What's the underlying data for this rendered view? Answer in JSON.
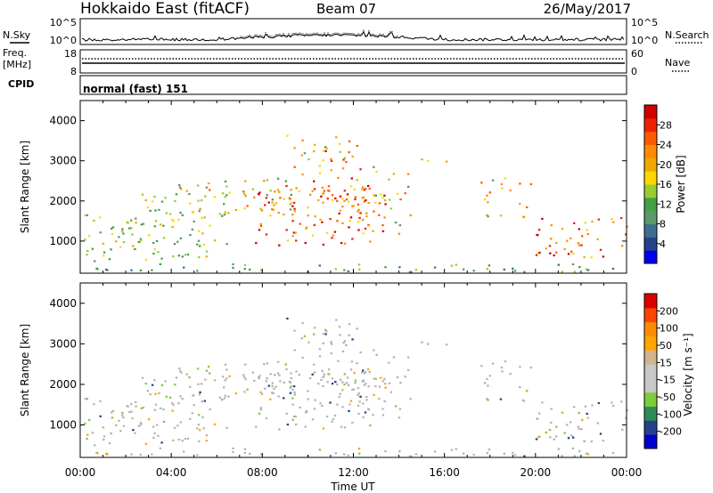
{
  "header": {
    "station": "Hokkaido East (fitACF)",
    "beam": "Beam 07",
    "date": "26/May/2017"
  },
  "strips": {
    "nsky_label": "N.Sky",
    "nsearch_label": "N.Search",
    "nsky_ticks": [
      "10^5",
      "10^0"
    ],
    "freq_label": "Freq.",
    "freq_unit": "[MHz]",
    "freq_ticks": [
      "18",
      "8"
    ],
    "nave_label": "Nave",
    "nave_ticks": [
      "60",
      "0"
    ],
    "cpid_label": "CPID",
    "cpid_value": "normal (fast) 151"
  },
  "colors": {
    "power": [
      "#0000ee",
      "#27408b",
      "#3c6e8e",
      "#5a9a6a",
      "#43a043",
      "#9acd32",
      "#ffd700",
      "#f0a800",
      "#ff8c00",
      "#ff5a00",
      "#ee2200",
      "#d00000"
    ],
    "velocity": [
      "#dd0000",
      "#ff4500",
      "#ff8c00",
      "#ffa500",
      "#d2b48c",
      "#c8c8c8",
      "#c8c8c8",
      "#7ccd3c",
      "#2e8b57",
      "#27408b",
      "#0000cd"
    ],
    "ground_scatter": "#b4b4b4"
  },
  "chart_data": [
    {
      "type": "heatmap",
      "name": "power",
      "ylabel": "Slant Range [km]",
      "ylim": [
        200,
        4500
      ],
      "yticks": [
        1000,
        2000,
        3000,
        4000
      ],
      "colorbar": {
        "label": "Power [dB]",
        "range": [
          0,
          32
        ],
        "ticks": [
          "4",
          "8",
          "12",
          "16",
          "20",
          "24",
          "28"
        ]
      }
    },
    {
      "type": "heatmap",
      "name": "velocity",
      "ylabel": "Slant Range [km]",
      "xlabel": "Time UT",
      "ylim": [
        200,
        4500
      ],
      "yticks": [
        1000,
        2000,
        3000,
        4000
      ],
      "xlim": [
        0,
        24
      ],
      "xticks": [
        "00:00",
        "04:00",
        "08:00",
        "12:00",
        "16:00",
        "20:00",
        "00:00"
      ],
      "colorbar": {
        "label": "Velocity [m s⁻¹]",
        "ticks": [
          "200",
          "100",
          "50",
          "15",
          "-15",
          "-50",
          "-100",
          "-200"
        ]
      }
    }
  ]
}
